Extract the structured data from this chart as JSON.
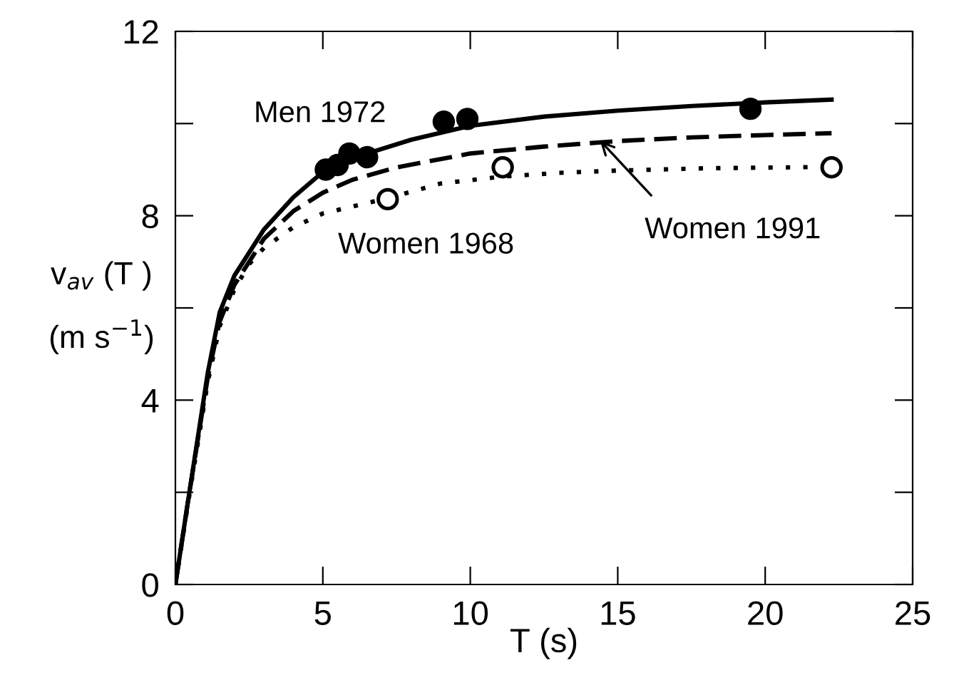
{
  "chart_data": {
    "type": "line",
    "xlabel": "T (s)",
    "ylabel": "v$_{av}$ (T )\n(m s$^{−1}$)",
    "xlim": [
      0,
      25
    ],
    "xticks": [
      0,
      5,
      10,
      15,
      20,
      25
    ],
    "ylim": [
      0,
      12
    ],
    "yticks": [
      0,
      {
        "value": 2,
        "label": null
      },
      4,
      {
        "value": 6,
        "label": null
      },
      8,
      {
        "value": 10,
        "label": null
      },
      12
    ],
    "grid": false,
    "legend": false,
    "series": [
      {
        "name": "Men 1972",
        "line_style": "solid",
        "marker": "none",
        "color": "#000000",
        "x": [
          0,
          0.45,
          1.1,
          1.5,
          2,
          3,
          4,
          5,
          6.5,
          8,
          10,
          12.5,
          15,
          17.5,
          20,
          22.25
        ],
        "values": [
          0,
          1.9,
          4.6,
          5.9,
          6.7,
          7.7,
          8.4,
          8.95,
          9.35,
          9.65,
          9.95,
          10.15,
          10.28,
          10.38,
          10.46,
          10.52
        ]
      },
      {
        "line_style": "dashed",
        "marker": "none",
        "color": "#000000",
        "x": [
          0,
          0.45,
          1.1,
          1.5,
          2,
          3,
          4,
          5,
          6,
          7.5,
          10,
          12.5,
          15,
          17.5,
          20,
          22.25
        ],
        "values": [
          0,
          1.9,
          4.5,
          5.7,
          6.5,
          7.5,
          8.1,
          8.5,
          8.78,
          9.05,
          9.35,
          9.5,
          9.62,
          9.7,
          9.75,
          9.79
        ]
      },
      {
        "name": "Women 1968",
        "line_style": "dotted",
        "marker": "none",
        "color": "#000000",
        "x": [
          0,
          0.45,
          1.1,
          1.5,
          2,
          2.5,
          3,
          4,
          5,
          7.2,
          9,
          11.1,
          13,
          15,
          18,
          22.25
        ],
        "values": [
          0,
          1.85,
          4.4,
          5.6,
          6.4,
          6.95,
          7.3,
          7.75,
          8.05,
          8.38,
          8.7,
          8.85,
          8.93,
          8.98,
          9.03,
          9.06
        ]
      },
      {
        "type": "scatter",
        "marker": "circle",
        "color": "#000000",
        "x": [
          5.1,
          5.5,
          5.9,
          6.5,
          9.1,
          9.9,
          19.5
        ],
        "values": [
          9.0,
          9.1,
          9.35,
          9.27,
          10.04,
          10.1,
          10.32
        ]
      },
      {
        "type": "scatter",
        "marker": "circle",
        "color": "#ffffff",
        "x": [
          7.2,
          11.1,
          22.25
        ],
        "values": [
          8.36,
          9.05,
          9.05
        ]
      }
    ],
    "annotations": [
      {
        "text": "Women 1991",
        "x": 14.4,
        "y": 9.63
      }
    ]
  }
}
